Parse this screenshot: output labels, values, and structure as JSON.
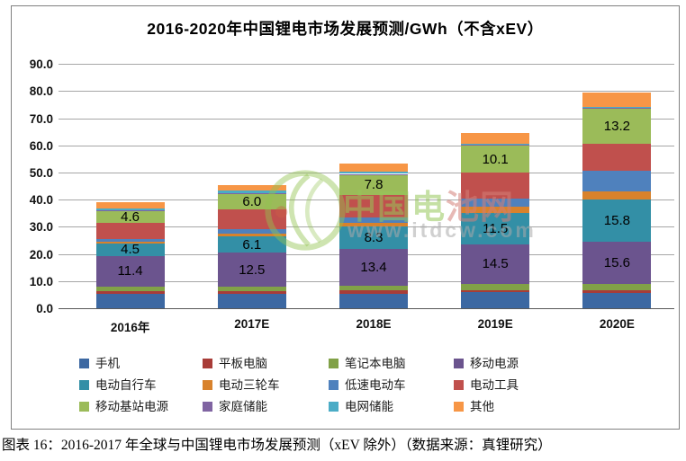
{
  "caption": "图表 16：2016-2017 年全球与中国锂电市场发展预测（xEV 除外）（数据来源：真锂研究）",
  "watermark": {
    "brand": "中国电池网",
    "url": "www.itdcw.com",
    "green": "rgba(150,199,90,0.55)",
    "red": "rgba(212,128,120,0.55)"
  },
  "chart_data": {
    "type": "bar",
    "stacked": true,
    "title": "2016-2020年中国锂电市场发展预测/GWh（不含xEV）",
    "unit": "GWh",
    "categories": [
      "2016年",
      "2017E",
      "2018E",
      "2019E",
      "2020E"
    ],
    "yticks": [
      "0.0",
      "10.0",
      "20.0",
      "30.0",
      "40.0",
      "50.0",
      "60.0",
      "70.0",
      "80.0",
      "90.0"
    ],
    "ylim": [
      0,
      90
    ],
    "grid": true,
    "legend_position": "bottom",
    "series": [
      {
        "name": "手机",
        "color": "#3C68A2",
        "values": [
          5.3,
          5.2,
          5.4,
          5.8,
          5.5
        ],
        "labeled": false
      },
      {
        "name": "平板电脑",
        "color": "#A83C38",
        "values": [
          1.1,
          1.2,
          1.1,
          0.9,
          1.1
        ],
        "labeled": false
      },
      {
        "name": "笔记本电脑",
        "color": "#81A147",
        "values": [
          1.5,
          1.5,
          1.8,
          2.4,
          2.2
        ],
        "labeled": false
      },
      {
        "name": "移动电源",
        "color": "#6B548E",
        "values": [
          11.4,
          12.5,
          13.4,
          14.5,
          15.6
        ],
        "labeled": true
      },
      {
        "name": "电动自行车",
        "color": "#338FA6",
        "values": [
          4.5,
          6.1,
          8.3,
          11.5,
          15.8
        ],
        "labeled": true
      },
      {
        "name": "电动三轮车",
        "color": "#D8822C",
        "values": [
          0.8,
          1.0,
          1.6,
          2.2,
          2.7
        ],
        "labeled": false
      },
      {
        "name": "低速电动车",
        "color": "#4F81BD",
        "values": [
          0.9,
          1.5,
          1.8,
          3.1,
          7.8
        ],
        "labeled": false
      },
      {
        "name": "电动工具",
        "color": "#C0504D",
        "values": [
          5.8,
          7.3,
          8.2,
          9.5,
          9.8
        ],
        "labeled": false
      },
      {
        "name": "移动基站电源",
        "color": "#9BBB59",
        "values": [
          4.6,
          6.0,
          7.8,
          10.1,
          13.2
        ],
        "labeled": true
      },
      {
        "name": "家庭储能",
        "color": "#8064A2",
        "values": [
          0.1,
          0.1,
          0.1,
          0.1,
          0.1
        ],
        "labeled": false
      },
      {
        "name": "电网储能",
        "color": "#4BACC6",
        "values": [
          0.8,
          1.0,
          0.9,
          0.5,
          0.5
        ],
        "labeled": false
      },
      {
        "name": "其他",
        "color": "#F79646",
        "values": [
          2.3,
          2.0,
          3.0,
          4.0,
          5.2
        ],
        "labeled": false
      }
    ]
  }
}
